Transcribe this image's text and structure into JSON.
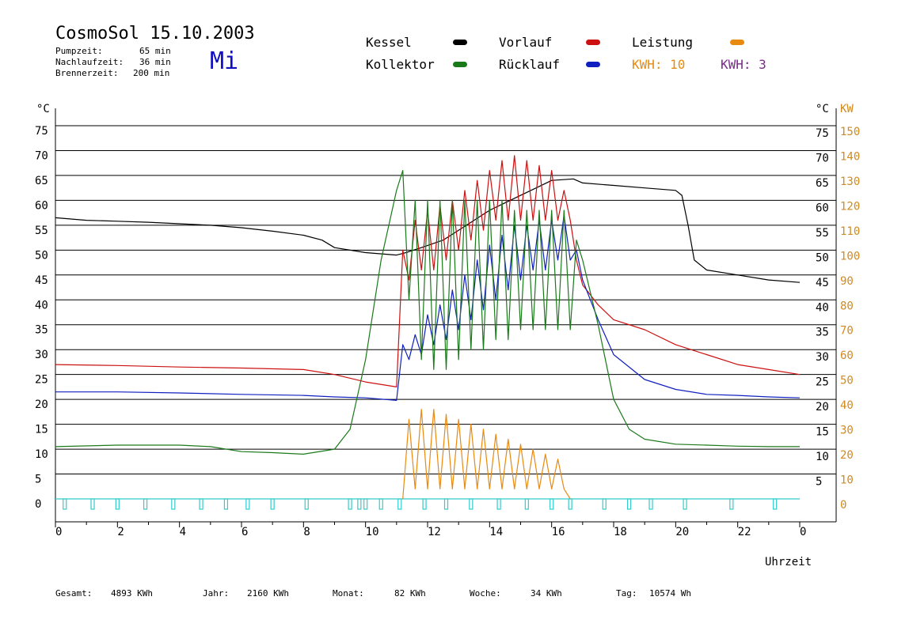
{
  "header": {
    "title": "CosmoSol 15.10.2003",
    "day": "Mi",
    "stats": [
      {
        "label": "Pumpzeit:",
        "value": "65 min"
      },
      {
        "label": "Nachlaufzeit:",
        "value": "36 min"
      },
      {
        "label": "Brennerzeit:",
        "value": "200 min"
      }
    ]
  },
  "legend": {
    "kessel": "Kessel",
    "kollektor": "Kollektor",
    "vorlauf": "Vorlauf",
    "ruecklauf": "Rücklauf",
    "leistung": "Leistung",
    "kwh_orange": "KWH: 10",
    "kwh_purple": "KWH: 3"
  },
  "colors": {
    "kessel": "#000000",
    "kollektor": "#1a7a1a",
    "vorlauf": "#cc1111",
    "ruecklauf": "#1020c0",
    "leistung": "#e88a10",
    "purple": "#7a2a8a",
    "cyan": "#33cccc",
    "axis_right_kw": "#d08a20"
  },
  "footer": [
    {
      "label": "Gesamt:",
      "value": "4893 KWh"
    },
    {
      "label": "Jahr:",
      "value": "2160 KWh"
    },
    {
      "label": "Monat:",
      "value": "82 KWh"
    },
    {
      "label": "Woche:",
      "value": "34 KWh"
    },
    {
      "label": "Tag:",
      "value": "10574 Wh"
    }
  ],
  "chart_data": {
    "type": "line",
    "xlabel": "Uhrzeit",
    "ylabel_left": "°C",
    "ylabel_right": "°C",
    "ylabel_right2": "KW",
    "xlim": [
      0,
      24
    ],
    "ylim": [
      0,
      75
    ],
    "x_ticks": [
      "0",
      "2",
      "4",
      "6",
      "8",
      "10",
      "12",
      "14",
      "16",
      "18",
      "20",
      "22",
      "0"
    ],
    "y_ticks_left": [
      "0",
      "5",
      "10",
      "15",
      "20",
      "25",
      "30",
      "35",
      "40",
      "45",
      "50",
      "55",
      "60",
      "65",
      "70",
      "75"
    ],
    "y_ticks_right": [
      "5",
      "10",
      "15",
      "20",
      "25",
      "30",
      "35",
      "40",
      "45",
      "50",
      "55",
      "60",
      "65",
      "70",
      "75"
    ],
    "y_ticks_kw": [
      "0",
      "10",
      "20",
      "30",
      "40",
      "50",
      "60",
      "70",
      "80",
      "90",
      "100",
      "110",
      "120",
      "130",
      "140",
      "150"
    ],
    "grid": "horizontal",
    "series": [
      {
        "name": "Kessel",
        "color": "#000000",
        "x": [
          0,
          1,
          2,
          3,
          4,
          5,
          6,
          7,
          8,
          8.6,
          9,
          10,
          11,
          11.3,
          11.8,
          12.5,
          13,
          14,
          15,
          15.5,
          16,
          16.7,
          17,
          18,
          19,
          20,
          20.2,
          20.4,
          20.6,
          21,
          22,
          23,
          24
        ],
        "y": [
          56.5,
          56,
          55.8,
          55.6,
          55.3,
          55,
          54.5,
          53.8,
          53,
          52,
          50.5,
          49.5,
          49,
          49.5,
          50.5,
          52,
          54,
          58,
          61,
          62.5,
          64,
          64.3,
          63.5,
          63,
          62.5,
          62,
          61,
          55,
          48,
          46,
          45,
          44,
          43.5
        ]
      },
      {
        "name": "Vorlauf",
        "color": "#cc1111",
        "x": [
          0,
          2,
          4,
          6,
          8,
          9,
          10,
          11,
          11.2,
          11.4,
          11.6,
          11.8,
          12.0,
          12.2,
          12.4,
          12.6,
          12.8,
          13.0,
          13.2,
          13.4,
          13.6,
          13.8,
          14.0,
          14.2,
          14.4,
          14.6,
          14.8,
          15.0,
          15.2,
          15.4,
          15.6,
          15.8,
          16.0,
          16.2,
          16.4,
          16.6,
          16.8,
          17,
          17.5,
          18,
          19,
          20,
          21,
          22,
          23,
          24
        ],
        "y": [
          27,
          26.8,
          26.5,
          26.3,
          26,
          25,
          23.5,
          22.5,
          50,
          44,
          56,
          46,
          58,
          46,
          59,
          48,
          60,
          50,
          62,
          52,
          64,
          54,
          66,
          56,
          68,
          56,
          69,
          56,
          68,
          56,
          67,
          56,
          66,
          56,
          62,
          56,
          48,
          43,
          39,
          36,
          34,
          31,
          29,
          27,
          26,
          25
        ]
      },
      {
        "name": "Rücklauf",
        "color": "#1020c0",
        "x": [
          0,
          2,
          4,
          6,
          8,
          9,
          10,
          11,
          11.2,
          11.4,
          11.6,
          11.8,
          12.0,
          12.2,
          12.4,
          12.6,
          12.8,
          13.0,
          13.2,
          13.4,
          13.6,
          13.8,
          14.0,
          14.2,
          14.4,
          14.6,
          14.8,
          15.0,
          15.2,
          15.4,
          15.6,
          15.8,
          16.0,
          16.2,
          16.4,
          16.6,
          16.8,
          17,
          17.5,
          18,
          19,
          20,
          21,
          22,
          23,
          24
        ],
        "y": [
          21.5,
          21.5,
          21.3,
          21,
          20.8,
          20.5,
          20.3,
          19.8,
          31,
          28,
          33,
          29,
          37,
          31,
          39,
          32,
          42,
          34,
          45,
          36,
          48,
          38,
          51,
          40,
          53,
          42,
          55,
          44,
          55,
          46,
          56,
          46,
          56,
          48,
          57,
          48,
          50,
          44,
          36,
          29,
          24,
          22,
          21,
          20.8,
          20.5,
          20.3
        ]
      },
      {
        "name": "Kollektor",
        "color": "#1a7a1a",
        "x": [
          0,
          2,
          4,
          5,
          6,
          7,
          8,
          9,
          9.5,
          10,
          10.5,
          11,
          11.2,
          11.4,
          11.6,
          11.8,
          12.0,
          12.2,
          12.4,
          12.6,
          12.8,
          13.0,
          13.2,
          13.4,
          13.6,
          13.8,
          14.0,
          14.2,
          14.4,
          14.6,
          14.8,
          15.0,
          15.2,
          15.4,
          15.6,
          15.8,
          16.0,
          16.2,
          16.4,
          16.6,
          16.8,
          17,
          17.5,
          18,
          18.5,
          19,
          20,
          21,
          22,
          23,
          24
        ],
        "y": [
          10.5,
          10.8,
          10.8,
          10.5,
          9.5,
          9.3,
          9,
          10,
          14,
          28,
          48,
          62,
          66,
          40,
          60,
          28,
          60,
          26,
          60,
          26,
          60,
          28,
          60,
          30,
          60,
          30,
          60,
          32,
          60,
          32,
          58,
          34,
          58,
          34,
          58,
          34,
          58,
          34,
          58,
          34,
          52,
          48,
          35,
          20,
          14,
          12,
          11,
          10.8,
          10.6,
          10.5,
          10.5
        ]
      },
      {
        "name": "Leistung",
        "color": "#e88a10",
        "x": [
          11.2,
          11.4,
          11.6,
          11.8,
          12.0,
          12.2,
          12.4,
          12.6,
          12.8,
          13.0,
          13.2,
          13.4,
          13.6,
          13.8,
          14.0,
          14.2,
          14.4,
          14.6,
          14.8,
          15.0,
          15.2,
          15.4,
          15.6,
          15.8,
          16.0,
          16.2,
          16.4,
          16.6
        ],
        "y": [
          0,
          16,
          2,
          18,
          2,
          18,
          2,
          17,
          2,
          16,
          2,
          15,
          2,
          14,
          2,
          13,
          2,
          12,
          2,
          11,
          2,
          10,
          2,
          9,
          2,
          8,
          2,
          0
        ]
      }
    ],
    "cyan_markers_x": [
      0.3,
      1.2,
      2,
      2.9,
      3.8,
      4.7,
      5.5,
      6.2,
      7,
      8.1,
      9.5,
      9.8,
      10,
      10.5,
      11.1,
      11.9,
      12.6,
      13.4,
      14.3,
      15.2,
      16,
      16.6,
      17.7,
      18.5,
      19.2,
      20.3,
      21.8,
      23.2
    ]
  }
}
